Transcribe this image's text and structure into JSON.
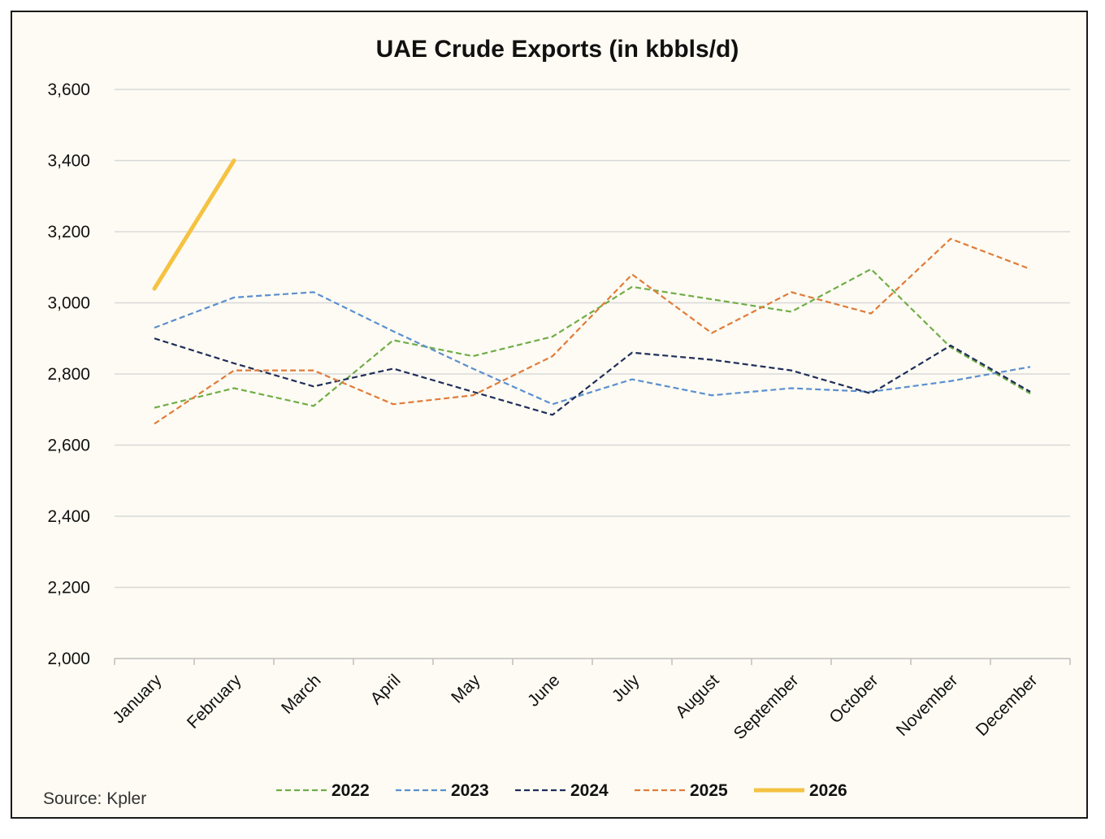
{
  "chart_data": {
    "type": "line",
    "title": "UAE Crude Exports (in kbbls/d)",
    "xlabel": "",
    "ylabel": "",
    "ylim": [
      2000,
      3600
    ],
    "yticks": [
      2000,
      2200,
      2400,
      2600,
      2800,
      3000,
      3200,
      3400,
      3600
    ],
    "ytick_labels": [
      "2,000",
      "2,200",
      "2,400",
      "2,600",
      "2,800",
      "3,000",
      "3,200",
      "3,400",
      "3,600"
    ],
    "categories": [
      "January",
      "February",
      "March",
      "April",
      "May",
      "June",
      "July",
      "August",
      "September",
      "October",
      "November",
      "December"
    ],
    "grid": "horizontal",
    "legend_position": "bottom",
    "series": [
      {
        "name": "2022",
        "color": "#70ad47",
        "style": "dashed",
        "values": [
          2705,
          2760,
          2710,
          2895,
          2850,
          2905,
          3045,
          3010,
          2975,
          3095,
          2875,
          2745
        ]
      },
      {
        "name": "2023",
        "color": "#5b8fd0",
        "style": "dashed",
        "values": [
          2930,
          3015,
          3030,
          2920,
          2815,
          2715,
          2785,
          2740,
          2760,
          2750,
          2780,
          2820
        ]
      },
      {
        "name": "2024",
        "color": "#1f2d5a",
        "style": "dashed",
        "values": [
          2900,
          2830,
          2765,
          2815,
          2750,
          2685,
          2860,
          2840,
          2810,
          2745,
          2880,
          2750
        ]
      },
      {
        "name": "2025",
        "color": "#e07b39",
        "style": "dashed",
        "values": [
          2660,
          2810,
          2810,
          2715,
          2740,
          2850,
          3080,
          2915,
          3030,
          2970,
          3180,
          3095
        ]
      },
      {
        "name": "2026",
        "color": "#f5c242",
        "style": "solid",
        "values": [
          3040,
          3400,
          null,
          null,
          null,
          null,
          null,
          null,
          null,
          null,
          null,
          null
        ]
      }
    ],
    "source": "Source: Kpler"
  }
}
